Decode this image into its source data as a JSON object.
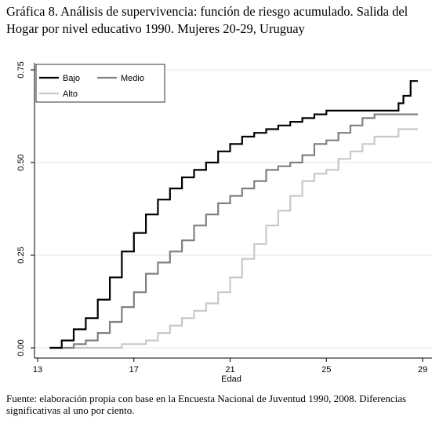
{
  "header": {
    "title": "Gráfica 8. Análisis de supervivencia: función de riesgo acumulado. Salida del Hogar por nivel educativo 1990. Mujeres 20-29, Uruguay"
  },
  "footer": {
    "source": "Fuente: elaboración propia con base en la Encuesta Nacional de Juventud 1990, 2008. Diferencias significativas al uno por ciento."
  },
  "colors": {
    "Bajo": "#000000",
    "Medio": "#808080",
    "Alto": "#c8c8c8",
    "grid": "#dde8ee"
  },
  "chart_data": {
    "type": "line",
    "title": "",
    "xlabel": "Edad",
    "ylabel": "",
    "xlim": [
      13,
      29
    ],
    "ylim": [
      0,
      0.75
    ],
    "xticks": [
      "13",
      "17",
      "21",
      "25",
      "29"
    ],
    "yticks": [
      "0.00",
      "0.25",
      "0.50",
      "0.75"
    ],
    "grid": true,
    "legend_position": "top-left",
    "series": [
      {
        "name": "Bajo",
        "x": [
          13.5,
          14,
          14.5,
          15,
          15.5,
          16,
          16.5,
          17,
          17.5,
          18,
          18.5,
          19,
          19.5,
          20,
          20.5,
          21,
          21.5,
          22,
          22.5,
          23,
          23.5,
          24,
          24.5,
          25,
          26,
          27,
          28,
          28.2,
          28.5,
          28.8
        ],
        "y": [
          0.0,
          0.02,
          0.05,
          0.08,
          0.13,
          0.19,
          0.26,
          0.31,
          0.36,
          0.4,
          0.43,
          0.46,
          0.48,
          0.5,
          0.53,
          0.55,
          0.57,
          0.58,
          0.59,
          0.6,
          0.61,
          0.62,
          0.63,
          0.64,
          0.64,
          0.64,
          0.66,
          0.68,
          0.72,
          0.72
        ]
      },
      {
        "name": "Medio",
        "x": [
          13.5,
          14,
          14.5,
          15,
          15.5,
          16,
          16.5,
          17,
          17.5,
          18,
          18.5,
          19,
          19.5,
          20,
          20.5,
          21,
          21.5,
          22,
          22.5,
          23,
          23.5,
          24,
          24.5,
          25,
          25.5,
          26,
          26.5,
          27,
          28,
          28.8
        ],
        "y": [
          0.0,
          0.0,
          0.01,
          0.02,
          0.04,
          0.07,
          0.11,
          0.15,
          0.2,
          0.23,
          0.26,
          0.29,
          0.33,
          0.36,
          0.39,
          0.41,
          0.43,
          0.45,
          0.48,
          0.49,
          0.5,
          0.52,
          0.55,
          0.56,
          0.58,
          0.6,
          0.62,
          0.63,
          0.63,
          0.63
        ]
      },
      {
        "name": "Alto",
        "x": [
          13.5,
          14,
          14.5,
          15,
          15.5,
          16,
          16.5,
          17,
          17.5,
          18,
          18.5,
          19,
          19.5,
          20,
          20.5,
          21,
          21.5,
          22,
          22.5,
          23,
          23.5,
          24,
          24.5,
          25,
          25.5,
          26,
          26.5,
          27,
          28,
          28.8
        ],
        "y": [
          0.0,
          0.0,
          0.0,
          0.0,
          0.0,
          0.0,
          0.01,
          0.01,
          0.02,
          0.04,
          0.06,
          0.08,
          0.1,
          0.12,
          0.15,
          0.19,
          0.24,
          0.28,
          0.33,
          0.37,
          0.41,
          0.45,
          0.47,
          0.48,
          0.51,
          0.53,
          0.55,
          0.57,
          0.59,
          0.59
        ]
      }
    ]
  }
}
